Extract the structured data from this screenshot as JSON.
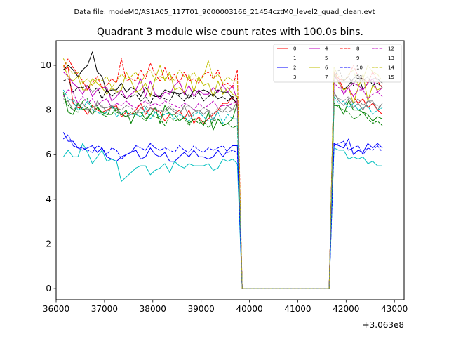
{
  "chart_data": {
    "type": "line",
    "suptitle": "Data file: modeM0/AS1A05_117T01_9000003166_21454cztM0_level2_quad_clean.evt",
    "title": "Quadrant 3 module wise count rates with 100.0s bins.",
    "xlabel": "",
    "ylabel": "",
    "x_offset_label": "+3.063e8",
    "xlim": [
      36000,
      43200
    ],
    "ylim": [
      -0.5,
      11.1
    ],
    "x_ticks": [
      36000,
      37000,
      38000,
      39000,
      40000,
      41000,
      42000,
      43000
    ],
    "x_tick_labels": [
      "36000",
      "37000",
      "38000",
      "39000",
      "40000",
      "41000",
      "42000",
      "43000"
    ],
    "y_ticks": [
      0,
      2,
      4,
      6,
      8,
      10
    ],
    "y_tick_labels": [
      "0",
      "2",
      "4",
      "6",
      "8",
      "10"
    ],
    "grid": false,
    "legend_location": "upper-right",
    "legend_columns": 4,
    "x_start": 36150,
    "x_step": 100,
    "x_end": 42850,
    "gap_start": 39850,
    "gap_end": 41850,
    "series": [
      {
        "name": "0",
        "color": "#ff0000",
        "dash": "solid",
        "pre": [
          9.8,
          9.9,
          8.3,
          8.1,
          8.1,
          7.8,
          8.2,
          8.0,
          7.9,
          8.0,
          8.1,
          8.2,
          7.7,
          7.9,
          7.8,
          8.0,
          8.3,
          7.8,
          8.1,
          8.0,
          7.9,
          7.5,
          7.8,
          7.8,
          8.0,
          7.6,
          8.0,
          7.4,
          7.7,
          7.4,
          7.6,
          7.8,
          8.0,
          8.3,
          8.3,
          8.6,
          8.2
        ],
        "post": [
          9.6,
          9.4,
          8.9,
          9.0,
          8.6,
          8.3,
          8.5,
          8.1,
          8.3,
          8.0,
          7.8,
          7.6
        ]
      },
      {
        "name": "1",
        "color": "#008000",
        "dash": "solid",
        "pre": [
          8.8,
          7.9,
          7.8,
          8.3,
          8.0,
          8.1,
          7.8,
          8.1,
          7.9,
          7.8,
          7.8,
          8.1,
          7.8,
          8.0,
          7.4,
          7.9,
          7.9,
          7.6,
          7.8,
          8.1,
          7.4,
          8.2,
          7.8,
          7.8,
          7.5,
          7.7,
          7.4,
          7.6,
          7.6,
          7.3,
          7.9,
          7.1,
          7.6,
          7.3,
          7.4,
          7.6,
          8.3
        ],
        "post": [
          8.2,
          8.2,
          7.8,
          8.4,
          8.0,
          8.0,
          7.9,
          7.8,
          7.5,
          7.7,
          7.6,
          7.3
        ]
      },
      {
        "name": "2",
        "color": "#0000ff",
        "dash": "solid",
        "pre": [
          7.0,
          6.6,
          6.6,
          6.3,
          6.2,
          6.3,
          6.4,
          6.1,
          6.3,
          5.9,
          5.8,
          5.7,
          5.9,
          6.0,
          6.1,
          6.2,
          5.8,
          5.9,
          6.3,
          6.0,
          5.9,
          6.1,
          5.7,
          5.7,
          5.9,
          6.1,
          5.9,
          6.2,
          5.9,
          5.9,
          5.8,
          5.9,
          6.2,
          5.9,
          6.2,
          6.4,
          6.4
        ],
        "post": [
          6.5,
          6.4,
          6.3,
          6.7,
          6.0,
          6.2,
          6.1,
          6.5,
          6.3,
          6.5,
          6.3,
          6.3
        ]
      },
      {
        "name": "3",
        "color": "#000000",
        "dash": "solid",
        "pre": [
          9.8,
          10.0,
          9.8,
          9.5,
          9.8,
          10.0,
          10.6,
          9.7,
          9.5,
          8.8,
          8.9,
          8.9,
          9.2,
          8.8,
          9.0,
          8.9,
          8.6,
          9.0,
          8.7,
          8.6,
          8.6,
          8.9,
          8.8,
          8.8,
          8.7,
          8.8,
          8.5,
          8.9,
          8.8,
          8.9,
          8.8,
          8.6,
          8.9,
          8.8,
          8.8,
          8.5,
          8.3
        ],
        "post": [
          9.6,
          9.2,
          8.9,
          9.1,
          9.4,
          9.6,
          8.9,
          9.2,
          9.4,
          9.4,
          9.2,
          8.8
        ]
      },
      {
        "name": "4",
        "color": "#bf00bf",
        "dash": "solid",
        "pre": [
          9.7,
          9.5,
          9.2,
          9.0,
          8.7,
          9.1,
          8.6,
          8.9,
          9.0,
          9.0,
          8.4,
          8.6,
          8.9,
          8.5,
          8.7,
          8.9,
          9.4,
          8.6,
          9.3,
          8.7,
          8.5,
          8.8,
          8.7,
          9.1,
          9.3,
          8.7,
          9.1,
          8.6,
          8.9,
          8.7,
          8.7,
          9.0,
          8.8,
          9.1,
          8.8,
          9.1,
          8.4
        ],
        "post": [
          9.5,
          9.3,
          8.7,
          9.0,
          9.2,
          9.1,
          8.9,
          9.2,
          9.4,
          8.8,
          9.0,
          8.6
        ]
      },
      {
        "name": "5",
        "color": "#00bfbf",
        "dash": "solid",
        "pre": [
          5.9,
          6.2,
          5.9,
          5.9,
          6.5,
          6.1,
          5.6,
          5.9,
          6.2,
          5.7,
          5.8,
          5.7,
          4.8,
          5.0,
          5.2,
          5.4,
          5.5,
          5.5,
          5.1,
          5.3,
          5.4,
          5.6,
          5.2,
          5.7,
          5.5,
          5.4,
          5.6,
          5.5,
          5.5,
          5.5,
          5.6,
          5.3,
          5.4,
          5.8,
          5.7,
          5.8,
          5.6
        ],
        "post": [
          6.3,
          6.2,
          6.2,
          5.8,
          5.9,
          5.8,
          5.9,
          5.6,
          5.7,
          5.5,
          5.5,
          5.3
        ]
      },
      {
        "name": "6",
        "color": "#bfbf00",
        "dash": "solid",
        "pre": [
          10.0,
          9.5,
          9.3,
          9.5,
          8.9,
          8.9,
          9.4,
          9.2,
          9.0,
          8.7,
          9.0,
          8.8,
          8.9,
          9.7,
          9.3,
          8.8,
          8.9,
          9.2,
          8.6,
          9.4,
          10.0,
          9.3,
          9.7,
          8.9,
          9.0,
          8.8,
          9.6,
          8.8,
          9.5,
          9.1,
          9.2,
          8.6,
          9.3,
          8.7,
          9.0,
          8.7,
          8.6
        ],
        "post": [
          9.7,
          9.2,
          8.9,
          9.0,
          8.3,
          9.0,
          9.6,
          8.4,
          9.1,
          8.9,
          9.0,
          8.8
        ]
      },
      {
        "name": "7",
        "color": "#808080",
        "dash": "solid",
        "pre": [
          8.5,
          8.4,
          8.0,
          8.2,
          8.3,
          8.0,
          7.8,
          8.4,
          8.1,
          8.1,
          8.2,
          8.0,
          7.8,
          7.7,
          7.8,
          7.8,
          8.1,
          7.9,
          8.1,
          7.9,
          8.0,
          7.9,
          8.1,
          7.9,
          7.8,
          8.2,
          7.7,
          7.9,
          8.0,
          7.8,
          8.0,
          7.5,
          8.0,
          7.9,
          8.2,
          8.0,
          8.4
        ],
        "post": [
          8.8,
          8.4,
          8.2,
          8.5,
          8.1,
          8.3,
          8.0,
          8.4,
          8.4,
          8.0,
          8.3,
          8.2
        ]
      },
      {
        "name": "8",
        "color": "#ff0000",
        "dash": "dashed",
        "pre": [
          9.9,
          10.3,
          9.9,
          9.6,
          9.3,
          8.9,
          9.2,
          9.5,
          9.0,
          9.1,
          9.4,
          9.2,
          10.3,
          9.3,
          9.4,
          9.3,
          9.8,
          9.4,
          10.1,
          9.6,
          9.3,
          9.9,
          9.3,
          9.6,
          9.2,
          9.7,
          9.3,
          9.4,
          9.2,
          9.6,
          9.7,
          9.4,
          9.8,
          9.1,
          9.2,
          9.0,
          9.8
        ],
        "post": [
          9.7,
          9.4,
          9.3,
          9.5,
          10.0,
          9.5,
          9.4,
          9.2,
          9.7,
          9.3,
          9.0,
          8.9
        ]
      },
      {
        "name": "9",
        "color": "#008000",
        "dash": "dashed",
        "pre": [
          8.7,
          8.2,
          8.0,
          7.9,
          8.4,
          8.5,
          8.1,
          8.2,
          7.8,
          7.7,
          8.2,
          7.9,
          7.8,
          7.7,
          7.9,
          7.8,
          7.7,
          7.5,
          7.8,
          7.7,
          7.6,
          7.3,
          7.7,
          7.5,
          7.6,
          7.6,
          7.3,
          7.6,
          7.4,
          7.5,
          7.2,
          7.5,
          7.6,
          7.3,
          7.4,
          7.2,
          7.3
        ],
        "post": [
          8.3,
          8.1,
          8.0,
          7.9,
          7.6,
          7.7,
          7.9,
          7.6,
          7.4,
          7.5,
          7.3,
          7.2
        ]
      },
      {
        "name": "10",
        "color": "#0000ff",
        "dash": "dashed",
        "pre": [
          6.7,
          6.9,
          6.4,
          6.3,
          6.3,
          6.2,
          6.1,
          6.4,
          6.3,
          6.0,
          6.3,
          6.2,
          5.8,
          6.0,
          6.1,
          6.4,
          6.3,
          6.2,
          6.5,
          6.3,
          6.2,
          6.3,
          6.2,
          6.1,
          6.4,
          6.2,
          6.1,
          6.4,
          6.2,
          6.1,
          6.3,
          6.2,
          6.3,
          6.4,
          6.1,
          6.2,
          6.1
        ],
        "post": [
          6.4,
          6.5,
          6.6,
          6.2,
          6.3,
          6.4,
          6.0,
          6.3,
          6.2,
          6.4,
          6.1,
          6.0
        ]
      },
      {
        "name": "11",
        "color": "#000000",
        "dash": "dashed",
        "pre": [
          9.3,
          9.4,
          8.8,
          9.0,
          9.0,
          9.1,
          8.8,
          9.0,
          8.5,
          8.9,
          8.6,
          8.8,
          8.7,
          8.5,
          8.6,
          8.7,
          8.4,
          8.6,
          8.3,
          8.7,
          8.6,
          8.5,
          8.4,
          8.8,
          8.6,
          8.4,
          8.7,
          8.5,
          8.8,
          8.4,
          8.6,
          8.7,
          8.5,
          8.6,
          8.4,
          8.6,
          8.5
        ],
        "post": [
          9.5,
          9.8,
          9.3,
          9.5,
          9.1,
          9.6,
          9.3,
          9.5,
          9.1,
          9.2,
          9.0,
          8.9
        ]
      },
      {
        "name": "12",
        "color": "#bf00bf",
        "dash": "dashed",
        "pre": [
          8.6,
          8.9,
          8.8,
          8.3,
          8.6,
          8.3,
          8.5,
          8.2,
          8.4,
          8.5,
          8.1,
          8.3,
          8.2,
          8.4,
          8.2,
          8.1,
          8.3,
          8.4,
          8.2,
          8.3,
          8.2,
          8.4,
          8.3,
          8.2,
          8.1,
          8.3,
          8.2,
          8.0,
          8.3,
          8.1,
          8.2,
          8.4,
          8.1,
          8.2,
          8.2,
          8.3,
          8.4
        ],
        "post": [
          9.2,
          9.0,
          8.8,
          9.0,
          8.6,
          8.9,
          8.9,
          8.5,
          8.7,
          8.8,
          8.6,
          8.5
        ]
      },
      {
        "name": "13",
        "color": "#00bfbf",
        "dash": "dashed",
        "pre": [
          8.9,
          8.5,
          8.4,
          8.0,
          8.1,
          8.4,
          8.0,
          7.9,
          7.8,
          7.9,
          8.2,
          7.7,
          7.9,
          7.9,
          7.8,
          7.8,
          7.7,
          8.1,
          7.6,
          7.9,
          7.7,
          7.8,
          7.9,
          7.6,
          7.8,
          7.7,
          7.5,
          7.8,
          7.9,
          7.7,
          7.5,
          7.6,
          7.9,
          7.4,
          7.8,
          7.6,
          7.6
        ],
        "post": [
          8.6,
          8.3,
          8.4,
          8.1,
          8.3,
          8.0,
          8.1,
          8.2,
          7.8,
          8.0,
          8.1,
          7.9
        ]
      },
      {
        "name": "14",
        "color": "#bfbf00",
        "dash": "dashed",
        "pre": [
          10.3,
          9.9,
          9.6,
          9.7,
          9.2,
          9.4,
          9.1,
          9.4,
          9.3,
          9.5,
          9.0,
          9.3,
          9.6,
          9.4,
          9.5,
          9.7,
          9.2,
          9.6,
          9.8,
          9.3,
          9.5,
          9.4,
          9.6,
          9.3,
          9.8,
          9.5,
          9.4,
          9.7,
          9.3,
          9.5,
          10.2,
          9.4,
          9.6,
          9.2,
          9.5,
          9.3,
          9.3
        ],
        "post": [
          9.9,
          9.5,
          9.3,
          9.6,
          9.8,
          9.1,
          9.4,
          10.0,
          9.7,
          9.6,
          9.3,
          9.1
        ]
      },
      {
        "name": "15",
        "color": "#808080",
        "dash": "dashed",
        "pre": [
          8.3,
          8.4,
          8.5,
          8.2,
          8.3,
          8.0,
          8.1,
          8.3,
          8.2,
          7.9,
          8.2,
          8.1,
          8.0,
          8.2,
          8.1,
          7.9,
          8.1,
          8.2,
          8.0,
          8.1,
          7.9,
          8.0,
          8.2,
          8.0,
          7.9,
          8.1,
          8.2,
          8.0,
          7.9,
          8.1,
          8.0,
          7.8,
          8.1,
          8.0,
          7.9,
          8.0,
          8.1
        ],
        "post": [
          8.7,
          8.5,
          8.4,
          8.6,
          8.3,
          8.5,
          8.2,
          8.4,
          8.3,
          8.2,
          8.1,
          8.0
        ]
      }
    ]
  }
}
